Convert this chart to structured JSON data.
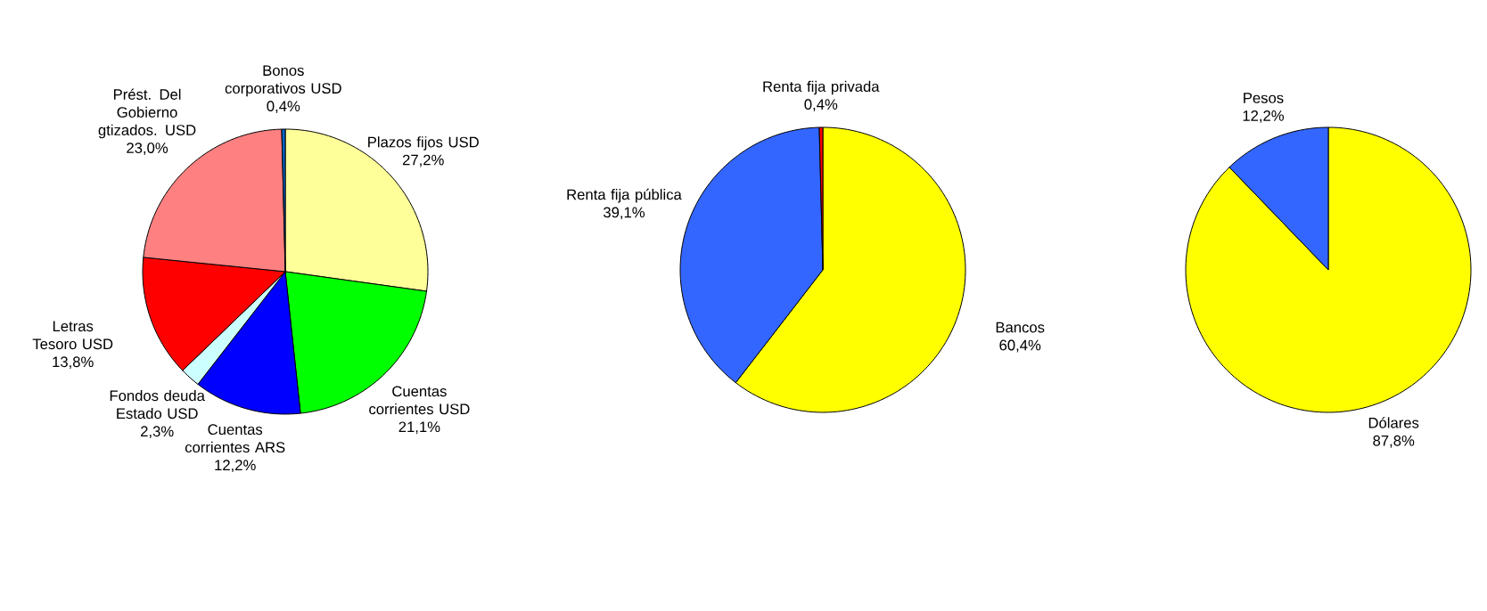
{
  "chart_data": [
    {
      "type": "pie",
      "categories": [
        "Plazos fijos USD",
        "Cuentas corrientes USD",
        "Cuentas corrientes ARS",
        "Fondos deuda Estado USD",
        "Letras Tesoro USD",
        "Prést. Del Gobierno gtizados. USD",
        "Bonos corporativos USD"
      ],
      "values": [
        27.2,
        21.1,
        12.2,
        2.3,
        13.8,
        23.0,
        0.4
      ],
      "colors": [
        "#ffff99",
        "#00ff00",
        "#0000ff",
        "#ccffff",
        "#ff0000",
        "#ff8080",
        "#0066cc"
      ],
      "value_labels": [
        "27,2%",
        "21,1%",
        "12,2%",
        "2,3%",
        "13,8%",
        "23,0%",
        "0,4%"
      ]
    },
    {
      "type": "pie",
      "categories": [
        "Bancos",
        "Renta fija pública",
        "Renta fija privada"
      ],
      "values": [
        60.4,
        39.1,
        0.4
      ],
      "colors": [
        "#ffff00",
        "#3366ff",
        "#ff0000"
      ],
      "value_labels": [
        "60,4%",
        "39,1%",
        "0,4%"
      ]
    },
    {
      "type": "pie",
      "categories": [
        "Dólares",
        "Pesos"
      ],
      "values": [
        87.8,
        12.2
      ],
      "colors": [
        "#ffff00",
        "#3366ff"
      ],
      "value_labels": [
        "87,8%",
        "12,2%"
      ]
    }
  ]
}
